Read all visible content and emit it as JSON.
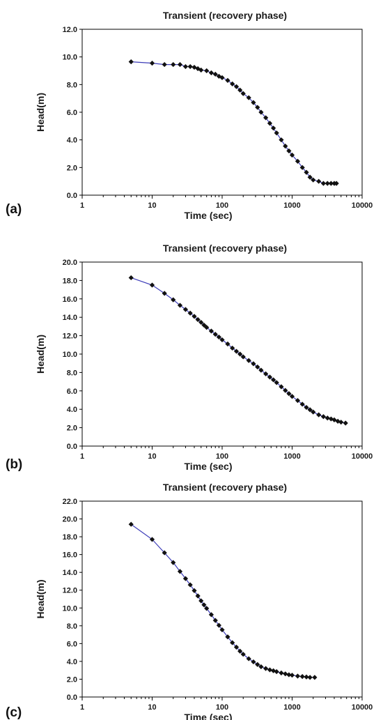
{
  "colors": {
    "line": "#3b3bb8",
    "marker": "#111111",
    "axis": "#000000"
  },
  "chart_data": [
    {
      "type": "scatter",
      "panel_label": "(a)",
      "title": "Transient (recovery phase)",
      "xlabel": "Time (sec)",
      "ylabel": "Head(m)",
      "xscale": "log",
      "xlim": [
        1,
        10000
      ],
      "ylim": [
        0,
        12
      ],
      "x_ticks": [
        "1",
        "10",
        "100",
        "1000",
        "10000"
      ],
      "y_ticks": [
        "0.0",
        "2.0",
        "4.0",
        "6.0",
        "8.0",
        "10.0",
        "12.0"
      ],
      "grid": false,
      "x": [
        5,
        10,
        15,
        20,
        25,
        30,
        35,
        40,
        45,
        50,
        60,
        70,
        80,
        90,
        100,
        120,
        140,
        160,
        180,
        200,
        240,
        280,
        320,
        360,
        420,
        480,
        540,
        600,
        700,
        800,
        900,
        1000,
        1200,
        1400,
        1600,
        1800,
        2000,
        2400,
        2800,
        3200,
        3600,
        4000,
        4300
      ],
      "y": [
        9.65,
        9.55,
        9.45,
        9.45,
        9.45,
        9.3,
        9.3,
        9.25,
        9.15,
        9.05,
        9.0,
        8.85,
        8.75,
        8.6,
        8.5,
        8.3,
        8.05,
        7.85,
        7.6,
        7.35,
        7.05,
        6.7,
        6.35,
        6.0,
        5.6,
        5.2,
        4.85,
        4.5,
        4.0,
        3.55,
        3.2,
        2.9,
        2.45,
        2.0,
        1.65,
        1.3,
        1.1,
        1.0,
        0.85,
        0.85,
        0.85,
        0.85,
        0.85
      ]
    },
    {
      "type": "scatter",
      "panel_label": "(b)",
      "title": "Transient (recovery phase)",
      "xlabel": "Time (sec)",
      "ylabel": "Head(m)",
      "xscale": "log",
      "xlim": [
        1,
        10000
      ],
      "ylim": [
        0,
        20
      ],
      "x_ticks": [
        "1",
        "10",
        "100",
        "1000",
        "10000"
      ],
      "y_ticks": [
        "0.0",
        "2.0",
        "4.0",
        "6.0",
        "8.0",
        "10.0",
        "12.0",
        "14.0",
        "16.0",
        "18.0",
        "20.0"
      ],
      "grid": false,
      "x": [
        5,
        10,
        15,
        20,
        25,
        30,
        35,
        40,
        45,
        50,
        55,
        60,
        70,
        80,
        90,
        100,
        120,
        140,
        160,
        180,
        200,
        240,
        280,
        320,
        360,
        420,
        480,
        540,
        600,
        700,
        800,
        900,
        1000,
        1200,
        1400,
        1600,
        1800,
        2000,
        2400,
        2800,
        3200,
        3600,
        4000,
        4500,
        5000,
        5800
      ],
      "y": [
        18.3,
        17.5,
        16.6,
        15.9,
        15.3,
        14.85,
        14.45,
        14.1,
        13.75,
        13.45,
        13.15,
        12.9,
        12.5,
        12.15,
        11.85,
        11.55,
        11.1,
        10.65,
        10.3,
        10.0,
        9.7,
        9.3,
        8.95,
        8.6,
        8.25,
        7.85,
        7.5,
        7.2,
        6.9,
        6.45,
        6.05,
        5.7,
        5.4,
        4.95,
        4.55,
        4.2,
        3.95,
        3.7,
        3.4,
        3.2,
        3.05,
        2.95,
        2.85,
        2.7,
        2.6,
        2.5
      ]
    },
    {
      "type": "scatter",
      "panel_label": "(c)",
      "title": "Transient (recovery phase)",
      "xlabel": "Time (sec)",
      "ylabel": "Head(m)",
      "xscale": "log",
      "xlim": [
        1,
        10000
      ],
      "ylim": [
        0,
        22
      ],
      "x_ticks": [
        "1",
        "10",
        "100",
        "1000",
        "10000"
      ],
      "y_ticks": [
        "0.0",
        "2.0",
        "4.0",
        "6.0",
        "8.0",
        "10.0",
        "12.0",
        "14.0",
        "16.0",
        "18.0",
        "20.0",
        "22.0"
      ],
      "grid": false,
      "x": [
        5,
        10,
        15,
        20,
        25,
        30,
        35,
        40,
        45,
        50,
        55,
        60,
        70,
        80,
        90,
        100,
        120,
        140,
        160,
        180,
        200,
        240,
        280,
        320,
        360,
        420,
        480,
        540,
        600,
        700,
        800,
        900,
        1000,
        1200,
        1400,
        1600,
        1800,
        2100
      ],
      "y": [
        19.4,
        17.7,
        16.2,
        15.1,
        14.1,
        13.3,
        12.6,
        11.95,
        11.35,
        10.8,
        10.35,
        9.95,
        9.25,
        8.6,
        8.05,
        7.55,
        6.75,
        6.1,
        5.6,
        5.15,
        4.8,
        4.3,
        3.95,
        3.65,
        3.4,
        3.2,
        3.05,
        2.95,
        2.85,
        2.7,
        2.6,
        2.5,
        2.45,
        2.35,
        2.3,
        2.25,
        2.2,
        2.2
      ]
    }
  ]
}
